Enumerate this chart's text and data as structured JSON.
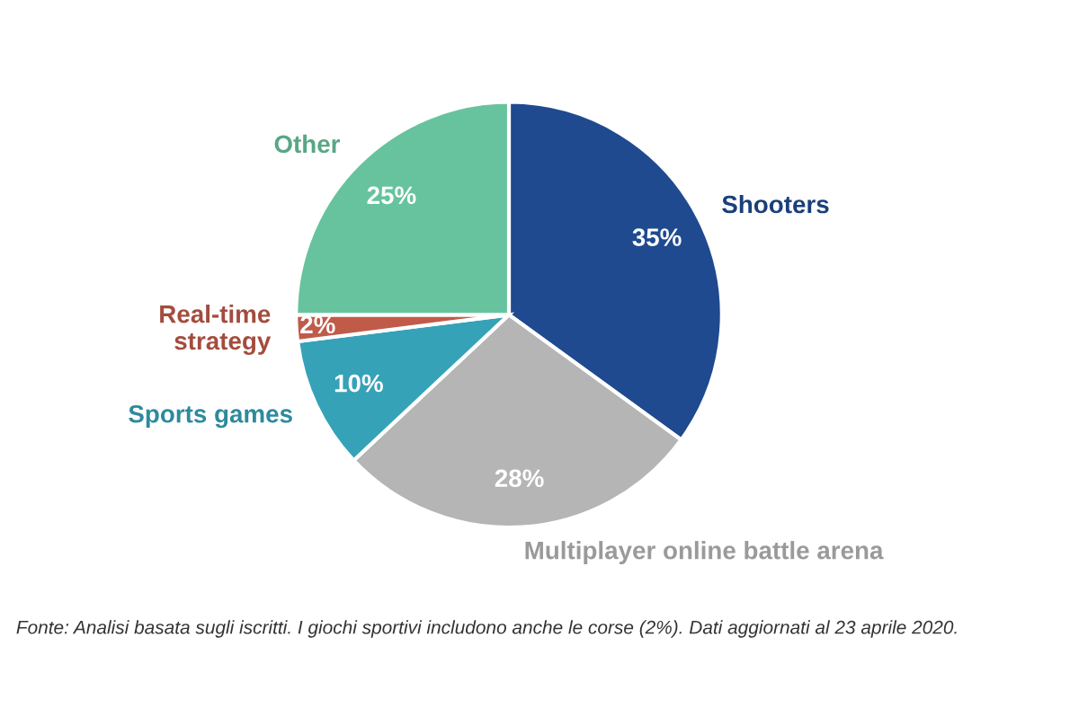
{
  "chart_data": {
    "type": "pie",
    "categories": [
      "Shooters",
      "Multiplayer online battle arena",
      "Sports games",
      "Real-time\nstrategy",
      "Other"
    ],
    "values": [
      35,
      28,
      10,
      2,
      25
    ],
    "colors": [
      "#1f4a8f",
      "#b5b5b5",
      "#36a2b8",
      "#c05a49",
      "#67c39e"
    ],
    "value_labels": [
      "35%",
      "28%",
      "10%",
      "2%",
      "25%"
    ],
    "legend": false,
    "annotations": [
      "Fonte: Analisi basata sugli iscritti. I giochi sportivi includono anche le corse (2%). Dati aggiornati al 23 aprile 2020."
    ]
  }
}
